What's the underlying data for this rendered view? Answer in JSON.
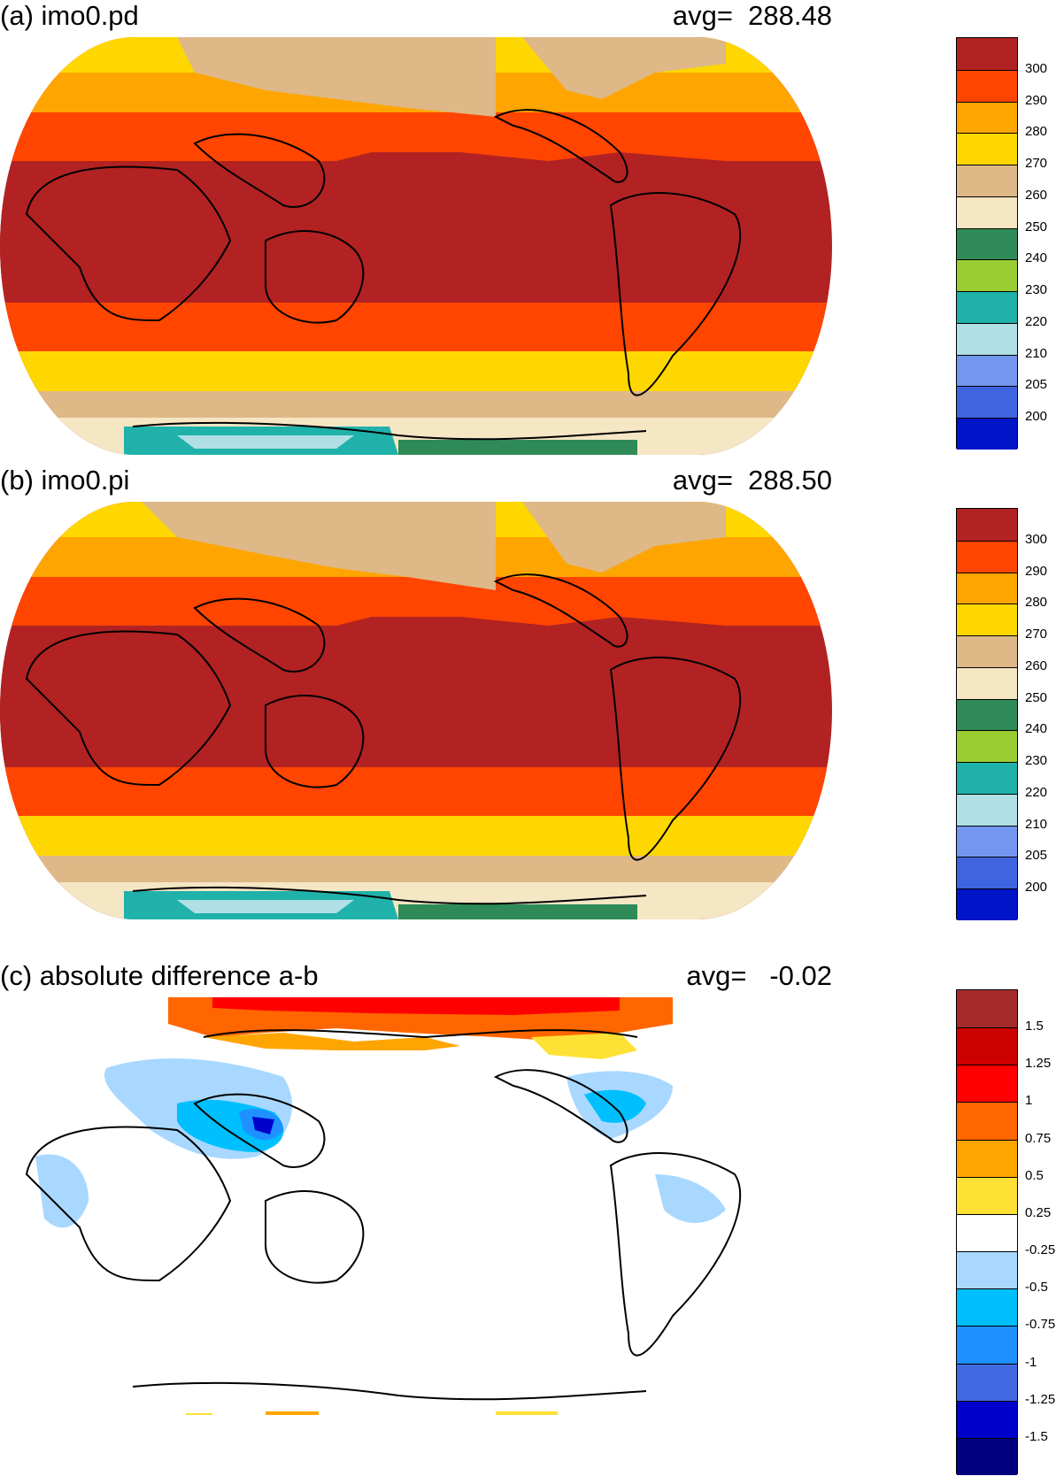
{
  "panels": [
    {
      "title": "(a) imo0.pd",
      "avg_label": "avg=  288.48",
      "colorbar": {
        "colors": [
          "#0014c8",
          "#3e64e0",
          "#7397ef",
          "#b0e0e6",
          "#20b2aa",
          "#9acd32",
          "#2e8b57",
          "#f5e6c4",
          "#deb887",
          "#ffd700",
          "#ffa500",
          "#ff4500",
          "#b22222"
        ],
        "labels": [
          "200",
          "205",
          "210",
          "220",
          "230",
          "240",
          "250",
          "260",
          "270",
          "280",
          "290",
          "300"
        ]
      }
    },
    {
      "title": "(b) imo0.pi",
      "avg_label": "avg=  288.50",
      "colorbar": {
        "colors": [
          "#0014c8",
          "#3e64e0",
          "#7397ef",
          "#b0e0e6",
          "#20b2aa",
          "#9acd32",
          "#2e8b57",
          "#f5e6c4",
          "#deb887",
          "#ffd700",
          "#ffa500",
          "#ff4500",
          "#b22222"
        ],
        "labels": [
          "200",
          "205",
          "210",
          "220",
          "230",
          "240",
          "250",
          "260",
          "270",
          "280",
          "290",
          "300"
        ]
      }
    },
    {
      "title": "(c) absolute difference a-b",
      "avg_label": "avg=   -0.02",
      "colorbar": {
        "colors": [
          "#000080",
          "#0000cd",
          "#4169e1",
          "#1e90ff",
          "#00bfff",
          "#a8d8ff",
          "#ffffff",
          "#ffe135",
          "#ffa500",
          "#ff6600",
          "#ff0000",
          "#cd0000",
          "#a52a2a"
        ],
        "labels": [
          "-1.5",
          "-1.25",
          "-1",
          "-0.75",
          "-0.5",
          "-0.25",
          "0.25",
          "0.5",
          "0.75",
          "1",
          "1.25",
          "1.5"
        ]
      }
    }
  ]
}
